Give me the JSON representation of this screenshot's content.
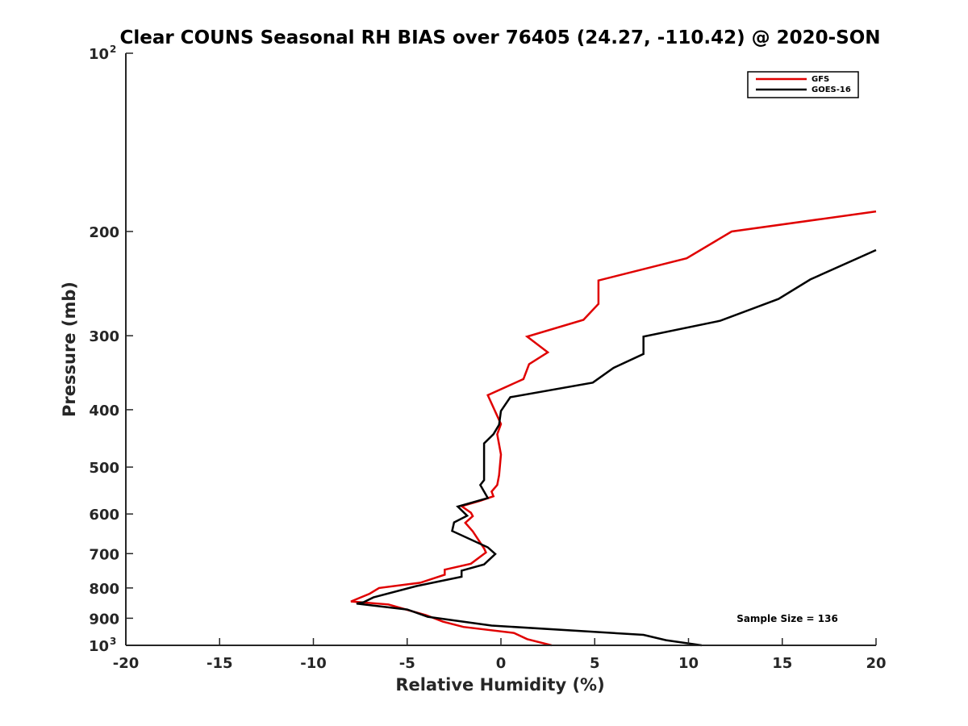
{
  "chart_data": {
    "type": "line",
    "title": "Clear COUNS Seasonal RH BIAS over 76405 (24.27, -110.42) @ 2020-SON",
    "xlabel": "Relative Humidity (%)",
    "ylabel": "Pressure (mb)",
    "xlim": [
      -20,
      20
    ],
    "ylim": [
      1000,
      100
    ],
    "y_scale": "log",
    "x_ticks": [
      "-20",
      "-15",
      "-10",
      "-5",
      "0",
      "5",
      "10",
      "15",
      "20"
    ],
    "y_ticks": [
      {
        "value": 100,
        "base": "10",
        "exp": "2",
        "label": ""
      },
      {
        "value": 200,
        "base": "",
        "exp": "",
        "label": "200"
      },
      {
        "value": 300,
        "base": "",
        "exp": "",
        "label": "300"
      },
      {
        "value": 400,
        "base": "",
        "exp": "",
        "label": "400"
      },
      {
        "value": 500,
        "base": "",
        "exp": "",
        "label": "500"
      },
      {
        "value": 600,
        "base": "",
        "exp": "",
        "label": "600"
      },
      {
        "value": 700,
        "base": "",
        "exp": "",
        "label": "700"
      },
      {
        "value": 800,
        "base": "",
        "exp": "",
        "label": "800"
      },
      {
        "value": 900,
        "base": "",
        "exp": "",
        "label": "900"
      },
      {
        "value": 1000,
        "base": "10",
        "exp": "3",
        "label": ""
      }
    ],
    "grid": false,
    "legend_position": "top-right",
    "annotation": "Sample Size = 136",
    "series": [
      {
        "name": "GFS",
        "color": "#e00000",
        "x": [
          20.0,
          12.3,
          9.9,
          5.2,
          5.2,
          4.4,
          1.4,
          2.5,
          1.5,
          1.2,
          -0.7,
          -0.3,
          0.0,
          -0.2,
          0.0,
          -0.1,
          -0.2,
          -0.5,
          -0.4,
          -1.1,
          -2.1,
          -1.6,
          -1.5,
          -1.9,
          -1.5,
          -0.9,
          -0.8,
          -1.6,
          -3.0,
          -3.0,
          -4.3,
          -6.5,
          -7.0,
          -8.0,
          -6.0,
          -5.0,
          -4.0,
          -3.1,
          -2.0,
          0.7,
          1.4,
          2.7
        ],
        "y": [
          185,
          200,
          222,
          242,
          265,
          282,
          301,
          320,
          335,
          355,
          378,
          403,
          423,
          440,
          476,
          516,
          536,
          550,
          560,
          570,
          582,
          597,
          605,
          621,
          642,
          686,
          697,
          728,
          745,
          760,
          784,
          800,
          818,
          843,
          853,
          871,
          889,
          912,
          931,
          953,
          976,
          1000
        ]
      },
      {
        "name": "GOES-16",
        "color": "#000000",
        "x": [
          20.0,
          16.5,
          14.8,
          11.7,
          7.6,
          7.6,
          6.0,
          4.9,
          0.5,
          0.0,
          -0.1,
          -0.4,
          -0.9,
          -0.9,
          -0.9,
          -1.1,
          -0.9,
          -0.7,
          -2.3,
          -1.8,
          -2.5,
          -2.6,
          -0.7,
          -0.3,
          -0.9,
          -2.1,
          -2.1,
          -4.5,
          -6.8,
          -7.3,
          -7.7,
          -5.0,
          -3.9,
          -0.5,
          7.6,
          8.8,
          10.7
        ],
        "y": [
          215,
          241,
          260,
          283,
          301,
          322,
          340,
          360,
          381,
          402,
          424,
          440,
          456,
          494,
          526,
          536,
          550,
          564,
          583,
          604,
          620,
          641,
          683,
          701,
          730,
          748,
          766,
          794,
          830,
          845,
          850,
          870,
          895,
          926,
          960,
          980,
          1000
        ]
      }
    ]
  }
}
